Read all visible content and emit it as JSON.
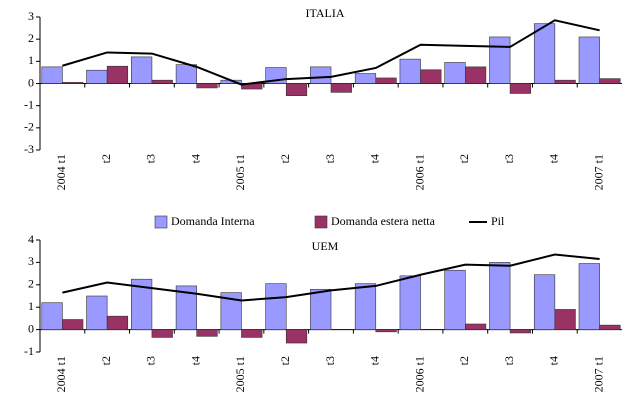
{
  "chart_data": [
    {
      "type": "bar-line",
      "title": "ITALIA",
      "categories": [
        "2004 t1",
        "t2",
        "t3",
        "t4",
        "2005 t1",
        "t2",
        "t3",
        "t4",
        "2006 t1",
        "t2",
        "t3",
        "t4",
        "2007 t1"
      ],
      "series": [
        {
          "name": "Domanda Interna",
          "type": "bar",
          "color": "#9999ff",
          "values": [
            0.75,
            0.6,
            1.2,
            0.85,
            0.15,
            0.72,
            0.75,
            0.45,
            1.1,
            0.95,
            2.1,
            2.7,
            2.1
          ]
        },
        {
          "name": "Domanda estera netta",
          "type": "bar",
          "color": "#993366",
          "values": [
            0.05,
            0.78,
            0.15,
            -0.2,
            -0.25,
            -0.55,
            -0.4,
            0.25,
            0.62,
            0.75,
            -0.45,
            0.15,
            0.22
          ]
        },
        {
          "name": "Pil",
          "type": "line",
          "color": "#000000",
          "values": [
            0.8,
            1.4,
            1.35,
            0.75,
            -0.05,
            0.2,
            0.3,
            0.7,
            1.75,
            1.7,
            1.65,
            2.85,
            2.4
          ]
        }
      ],
      "ylim": [
        -3,
        3
      ],
      "yticks": [
        -3,
        -2,
        -1,
        0,
        1,
        2,
        3
      ]
    },
    {
      "type": "bar-line",
      "title": "UEM",
      "categories": [
        "2004 t1",
        "t2",
        "t3",
        "t4",
        "2005 t1",
        "t2",
        "t3",
        "t4",
        "2006 t1",
        "t2",
        "t3",
        "t4",
        "2007 t1"
      ],
      "series": [
        {
          "type": "bar",
          "color": "#9999ff",
          "values": [
            1.2,
            1.5,
            2.25,
            1.95,
            1.65,
            2.05,
            1.8,
            2.05,
            2.4,
            2.65,
            3.0,
            2.45,
            2.95
          ]
        },
        {
          "type": "bar",
          "color": "#993366",
          "values": [
            0.45,
            0.6,
            -0.35,
            -0.3,
            -0.35,
            -0.6,
            0,
            -0.1,
            0,
            0.25,
            -0.15,
            0.9,
            0.2
          ]
        },
        {
          "type": "line",
          "color": "#000000",
          "values": [
            1.65,
            2.1,
            1.85,
            1.6,
            1.3,
            1.45,
            1.75,
            1.95,
            2.45,
            2.9,
            2.85,
            3.35,
            3.15
          ]
        }
      ],
      "ylim": [
        -1,
        4
      ],
      "yticks": [
        -1,
        0,
        1,
        2,
        3,
        4
      ]
    }
  ]
}
